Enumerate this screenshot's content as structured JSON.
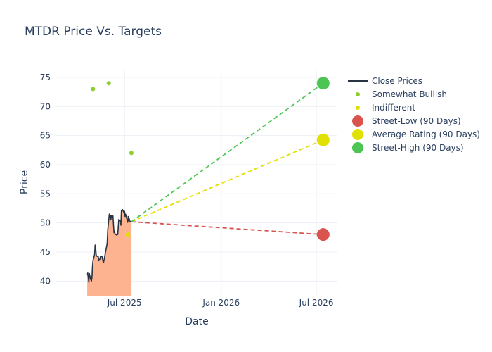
{
  "chart_data": {
    "type": "line",
    "title": "MTDR Price Vs. Targets",
    "xlabel": "Date",
    "ylabel": "Price",
    "xlim": [
      "2025-02-21",
      "2026-08-10"
    ],
    "ylim": [
      37.5,
      76.2
    ],
    "x_ticks": [
      {
        "date": "2025-07-01",
        "label": "Jul 2025"
      },
      {
        "date": "2026-01-01",
        "label": "Jan 2026"
      },
      {
        "date": "2026-07-01",
        "label": "Jul 2026"
      }
    ],
    "y_ticks": [
      40,
      45,
      50,
      55,
      60,
      65,
      70,
      75
    ],
    "grid": true,
    "legend_position": "right",
    "colors": {
      "close": "#2a3342",
      "fill": "#fdb38f",
      "somewhat_bullish": "#8fce2b",
      "indifferent": "#e2e000",
      "street_low": "#d9534f",
      "average": "#e2e000",
      "street_high": "#4cc552"
    },
    "close_prices": [
      [
        "2025-04-21",
        41.0
      ],
      [
        "2025-04-22",
        41.4
      ],
      [
        "2025-04-23",
        40.6
      ],
      [
        "2025-04-24",
        39.8
      ],
      [
        "2025-04-25",
        41.3
      ],
      [
        "2025-04-28",
        40.2
      ],
      [
        "2025-04-29",
        40.0
      ],
      [
        "2025-04-30",
        40.6
      ],
      [
        "2025-05-01",
        42.6
      ],
      [
        "2025-05-02",
        43.5
      ],
      [
        "2025-05-05",
        44.6
      ],
      [
        "2025-05-06",
        46.2
      ],
      [
        "2025-05-07",
        45.7
      ],
      [
        "2025-05-08",
        44.5
      ],
      [
        "2025-05-09",
        44.3
      ],
      [
        "2025-05-12",
        44.2
      ],
      [
        "2025-05-13",
        43.5
      ],
      [
        "2025-05-14",
        43.6
      ],
      [
        "2025-05-15",
        43.8
      ],
      [
        "2025-05-16",
        44.2
      ],
      [
        "2025-05-19",
        44.3
      ],
      [
        "2025-05-20",
        43.8
      ],
      [
        "2025-05-21",
        43.4
      ],
      [
        "2025-05-22",
        43.2
      ],
      [
        "2025-05-23",
        43.6
      ],
      [
        "2025-05-27",
        45.6
      ],
      [
        "2025-05-28",
        46.0
      ],
      [
        "2025-05-29",
        46.6
      ],
      [
        "2025-05-30",
        48.8
      ],
      [
        "2025-06-02",
        51.5
      ],
      [
        "2025-06-03",
        50.9
      ],
      [
        "2025-06-04",
        51.2
      ],
      [
        "2025-06-05",
        50.6
      ],
      [
        "2025-06-06",
        51.3
      ],
      [
        "2025-06-09",
        51.2
      ],
      [
        "2025-06-10",
        49.6
      ],
      [
        "2025-06-11",
        48.3
      ],
      [
        "2025-06-12",
        48.6
      ],
      [
        "2025-06-13",
        48.1
      ],
      [
        "2025-06-16",
        47.9
      ],
      [
        "2025-06-17",
        48.2
      ],
      [
        "2025-06-18",
        48.0
      ],
      [
        "2025-06-20",
        50.6
      ],
      [
        "2025-06-23",
        50.3
      ],
      [
        "2025-06-24",
        49.6
      ],
      [
        "2025-06-25",
        52.1
      ],
      [
        "2025-06-26",
        52.2
      ],
      [
        "2025-06-27",
        52.3
      ],
      [
        "2025-06-30",
        51.7
      ],
      [
        "2025-07-01",
        52.0
      ],
      [
        "2025-07-02",
        51.1
      ],
      [
        "2025-07-03",
        51.5
      ],
      [
        "2025-07-07",
        50.1
      ],
      [
        "2025-07-08",
        51.1
      ],
      [
        "2025-07-09",
        50.4
      ],
      [
        "2025-07-10",
        50.7
      ],
      [
        "2025-07-11",
        50.3
      ],
      [
        "2025-07-14",
        50.2
      ]
    ],
    "somewhat_bullish": [
      {
        "date": "2025-05-02",
        "price": 73
      },
      {
        "date": "2025-06-01",
        "price": 74
      },
      {
        "date": "2025-07-14",
        "price": 62
      }
    ],
    "indifferent": [
      {
        "date": "2025-07-07",
        "price": 48
      }
    ],
    "targets_date": "2026-07-14",
    "street_low": 48,
    "average": 64.25,
    "street_high": 74,
    "last_close": 50.2
  },
  "legend": [
    {
      "label": "Close Prices",
      "kind": "line",
      "color": "#2a3342"
    },
    {
      "label": "Somewhat Bullish",
      "kind": "dot",
      "color": "#8fce2b"
    },
    {
      "label": "Indifferent",
      "kind": "dot",
      "color": "#e2e000"
    },
    {
      "label": "Street-Low (90 Days)",
      "kind": "bigdot",
      "color": "#d9534f"
    },
    {
      "label": "Average Rating (90 Days)",
      "kind": "bigdot",
      "color": "#e2e000"
    },
    {
      "label": "Street-High (90 Days)",
      "kind": "bigdot",
      "color": "#4cc552"
    }
  ]
}
